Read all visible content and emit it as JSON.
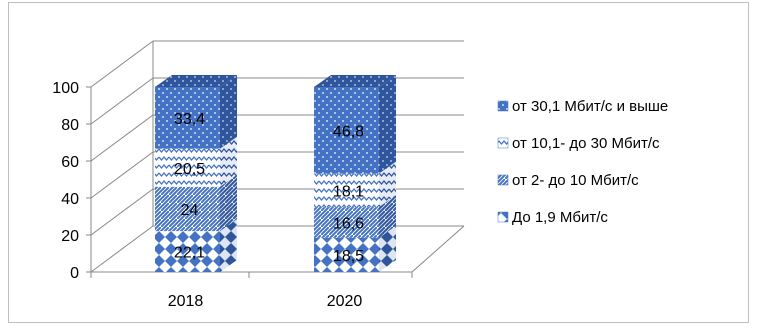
{
  "chart_data": {
    "type": "bar",
    "stacked": true,
    "three_d": true,
    "categories": [
      "2018",
      "2020"
    ],
    "ylim": [
      0,
      100
    ],
    "yticks": [
      0,
      20,
      40,
      60,
      80,
      100
    ],
    "grid": true,
    "legend_position": "right",
    "series": [
      {
        "name": "До 1,9 Мбит/с",
        "values": [
          22.1,
          18.5
        ],
        "labels": [
          "22,1",
          "18,5"
        ],
        "color": "#4472c4",
        "pattern": "diamonds"
      },
      {
        "name": "от 2- до 10 Мбит/с",
        "values": [
          24,
          16.6
        ],
        "labels": [
          "24",
          "16,6"
        ],
        "color": "#4472c4",
        "pattern": "diagonal-wave"
      },
      {
        "name": "от 10,1- до 30 Мбит/с",
        "values": [
          20.5,
          18.1
        ],
        "labels": [
          "20,5",
          "18,1"
        ],
        "color": "#4472c4",
        "pattern": "zigzag"
      },
      {
        "name": "от 30,1 Мбит/с и выше",
        "values": [
          33.4,
          46.8
        ],
        "labels": [
          "33,4",
          "46,8"
        ],
        "color": "#4472c4",
        "pattern": "dots"
      }
    ]
  }
}
